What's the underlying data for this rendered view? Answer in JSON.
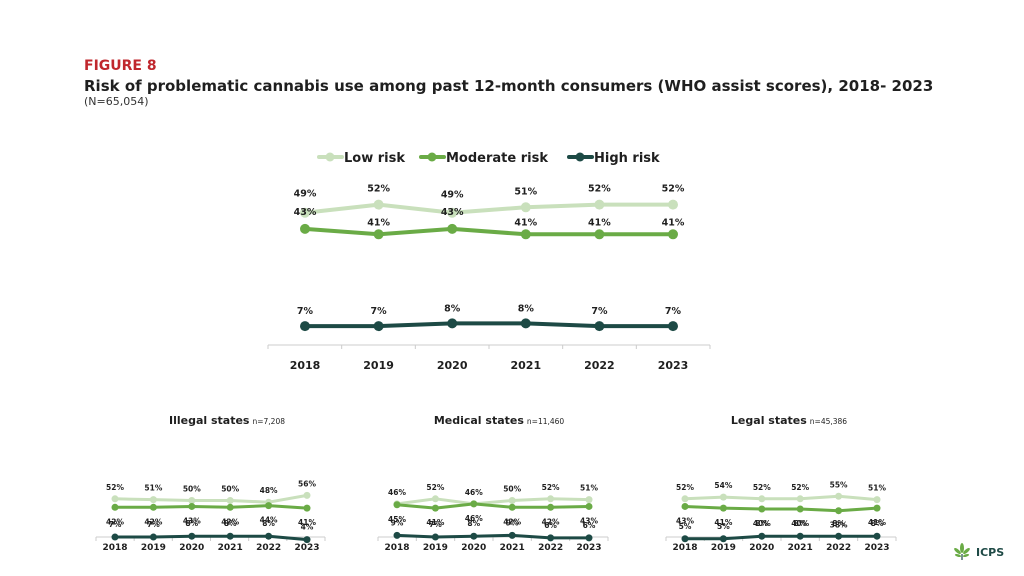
{
  "figure": {
    "label": "FIGURE 8",
    "title": "Risk of problematic cannabis use among past 12-month consumers (WHO assist scores), 2018- 2023",
    "n": "(N=65,054)"
  },
  "colors": {
    "low": "#c9e0bc",
    "moderate": "#6aab46",
    "high": "#1d4a45",
    "axis": "#cccccc"
  },
  "legend": [
    {
      "key": "low",
      "label": "Low risk"
    },
    {
      "key": "moderate",
      "label": "Moderate risk"
    },
    {
      "key": "high",
      "label": "High risk"
    }
  ],
  "chart_data": [
    {
      "type": "line",
      "id": "main",
      "title": "",
      "categories": [
        "2018",
        "2019",
        "2020",
        "2021",
        "2022",
        "2023"
      ],
      "ylim": [
        0,
        60
      ],
      "series": [
        {
          "key": "low",
          "name": "Low risk",
          "values": [
            49,
            52,
            49,
            51,
            52,
            52
          ]
        },
        {
          "key": "moderate",
          "name": "Moderate risk",
          "values": [
            43,
            41,
            43,
            41,
            41,
            41
          ]
        },
        {
          "key": "high",
          "name": "High risk",
          "values": [
            7,
            7,
            8,
            8,
            7,
            7
          ]
        }
      ]
    },
    {
      "type": "line",
      "id": "illegal",
      "title": "Illegal states",
      "subtitle": "n=7,208",
      "categories": [
        "2018",
        "2019",
        "2020",
        "2021",
        "2022",
        "2023"
      ],
      "ylim": [
        0,
        60
      ],
      "series": [
        {
          "key": "low",
          "name": "Low risk",
          "values": [
            52,
            51,
            50,
            50,
            48,
            56
          ]
        },
        {
          "key": "moderate",
          "name": "Moderate risk",
          "values": [
            42,
            42,
            43,
            42,
            44,
            41
          ]
        },
        {
          "key": "high",
          "name": "High risk",
          "values": [
            7,
            7,
            8,
            8,
            8,
            4
          ]
        }
      ]
    },
    {
      "type": "line",
      "id": "medical",
      "title": "Medical states",
      "subtitle": "n=11,460",
      "categories": [
        "2018",
        "2019",
        "2020",
        "2021",
        "2022",
        "2023"
      ],
      "ylim": [
        0,
        60
      ],
      "series": [
        {
          "key": "low",
          "name": "Low risk",
          "values": [
            46,
            52,
            46,
            50,
            52,
            51
          ]
        },
        {
          "key": "moderate",
          "name": "Moderate risk",
          "values": [
            45,
            41,
            46,
            42,
            42,
            43
          ]
        },
        {
          "key": "high",
          "name": "High risk",
          "values": [
            9,
            7,
            8,
            9,
            6,
            6
          ]
        }
      ]
    },
    {
      "type": "line",
      "id": "legal",
      "title": "Legal states",
      "subtitle": "n=45,386",
      "categories": [
        "2018",
        "2019",
        "2020",
        "2021",
        "2022",
        "2023"
      ],
      "ylim": [
        0,
        60
      ],
      "series": [
        {
          "key": "low",
          "name": "Low risk",
          "values": [
            52,
            54,
            52,
            52,
            55,
            51
          ]
        },
        {
          "key": "moderate",
          "name": "Moderate risk",
          "values": [
            43,
            41,
            40,
            40,
            38,
            41
          ]
        },
        {
          "key": "high",
          "name": "High risk",
          "values": [
            5,
            5,
            8,
            8,
            8,
            8
          ]
        }
      ]
    }
  ],
  "logo": {
    "text": "ICPS",
    "icon": "cannabis-leaf-icon"
  }
}
